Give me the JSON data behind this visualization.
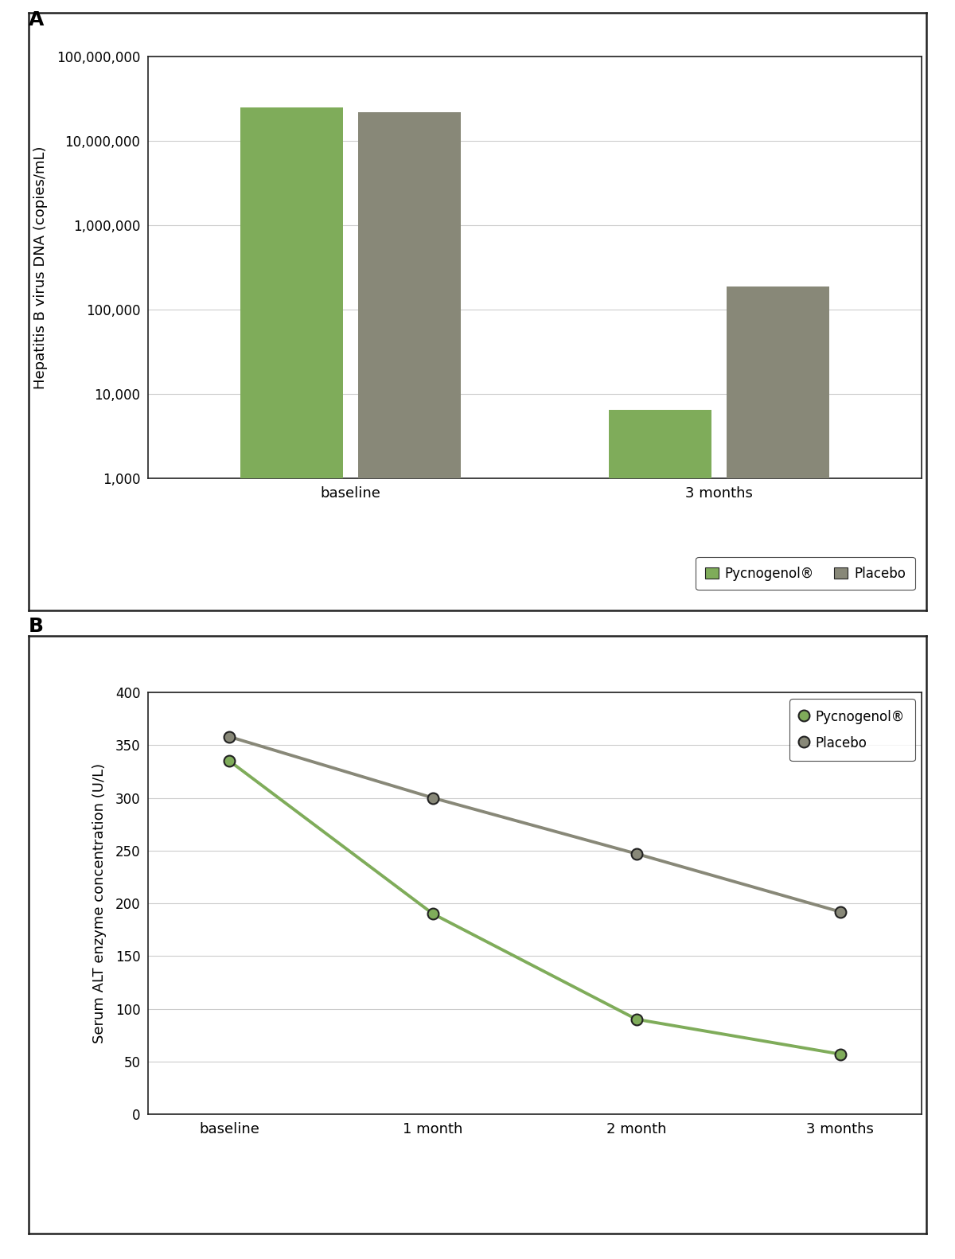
{
  "panel_A": {
    "categories": [
      "baseline",
      "3 months"
    ],
    "pycnogenol_values": [
      25000000,
      6500
    ],
    "placebo_values": [
      22000000,
      190000
    ],
    "pycnogenol_color": "#7fac5a",
    "placebo_color": "#888878",
    "ylabel": "Hepatitis B virus DNA (copies/mL)",
    "ylim_log": [
      1000,
      100000000
    ],
    "yticks": [
      1000,
      10000,
      100000,
      1000000,
      10000000,
      100000000
    ],
    "ytick_labels": [
      "1,000",
      "10,000",
      "100,000",
      "1,000,000",
      "10,000,000",
      "100,000,000"
    ],
    "legend_pycnogenol": "Pycnogenol®",
    "legend_placebo": "Placebo",
    "panel_label": "A"
  },
  "panel_B": {
    "x_labels": [
      "baseline",
      "1 month",
      "2 month",
      "3 months"
    ],
    "x_positions": [
      0,
      1,
      2,
      3
    ],
    "pycnogenol_values": [
      335,
      190,
      90,
      57
    ],
    "placebo_values": [
      358,
      300,
      247,
      192
    ],
    "pycnogenol_color": "#7fac5a",
    "placebo_color": "#888878",
    "ylabel": "Serum ALT enzyme concentration (U/L)",
    "ylim": [
      0,
      400
    ],
    "yticks": [
      0,
      50,
      100,
      150,
      200,
      250,
      300,
      350,
      400
    ],
    "legend_pycnogenol": "Pycnogenol®",
    "legend_placebo": "Placebo",
    "panel_label": "B"
  },
  "fig_background": "#ffffff",
  "chart_background": "#ffffff",
  "border_color": "#222222",
  "grid_color": "#cccccc",
  "bar_width": 0.28,
  "bar_gap": 0.04,
  "marker_size": 10,
  "line_width": 2.8,
  "tick_fontsize": 12,
  "label_fontsize": 13,
  "legend_fontsize": 12,
  "panel_label_fontsize": 18
}
